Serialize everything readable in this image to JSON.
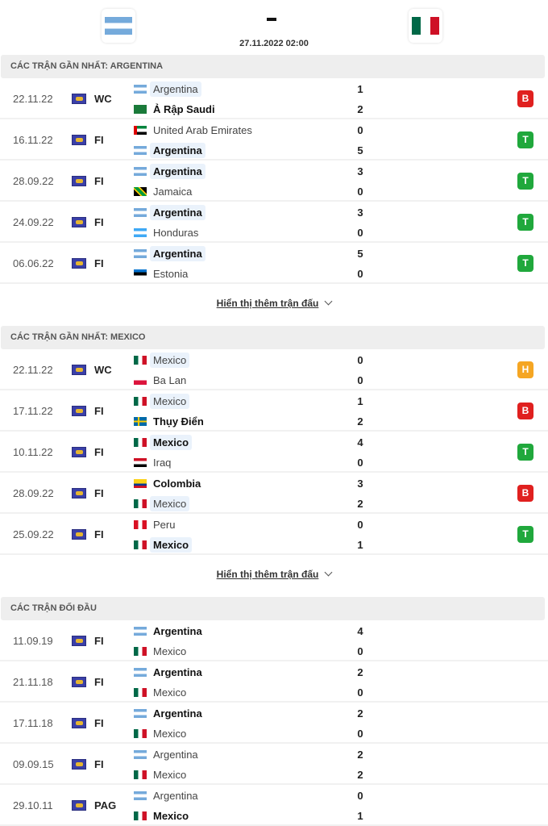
{
  "header": {
    "home_flag": "ARG",
    "away_flag": "MEX",
    "score": "-",
    "datetime": "27.11.2022 02:00"
  },
  "colors": {
    "B": "#e0201f",
    "T": "#20a83c",
    "H": "#f5a623",
    "highlight": "#eaf2fb"
  },
  "sections": [
    {
      "title": "CÁC TRẬN GẦN NHẤT: ARGENTINA",
      "more": "Hiển thị thêm trận đấu",
      "matches": [
        {
          "date": "22.11.22",
          "league": "WC",
          "home": {
            "flag": "ARG",
            "name": "Argentina",
            "bold": false,
            "hl": true
          },
          "away": {
            "flag": "KSA",
            "name": "Ả Rập Saudi",
            "bold": true,
            "hl": false
          },
          "hs": "1",
          "as": "2",
          "result": "B"
        },
        {
          "date": "16.11.22",
          "league": "FI",
          "home": {
            "flag": "UAE",
            "name": "United Arab Emirates",
            "bold": false,
            "hl": false
          },
          "away": {
            "flag": "ARG",
            "name": "Argentina",
            "bold": true,
            "hl": true
          },
          "hs": "0",
          "as": "5",
          "result": "T"
        },
        {
          "date": "28.09.22",
          "league": "FI",
          "home": {
            "flag": "ARG",
            "name": "Argentina",
            "bold": true,
            "hl": true
          },
          "away": {
            "flag": "JAM",
            "name": "Jamaica",
            "bold": false,
            "hl": false
          },
          "hs": "3",
          "as": "0",
          "result": "T"
        },
        {
          "date": "24.09.22",
          "league": "FI",
          "home": {
            "flag": "ARG",
            "name": "Argentina",
            "bold": true,
            "hl": true
          },
          "away": {
            "flag": "HON",
            "name": "Honduras",
            "bold": false,
            "hl": false
          },
          "hs": "3",
          "as": "0",
          "result": "T"
        },
        {
          "date": "06.06.22",
          "league": "FI",
          "home": {
            "flag": "ARG",
            "name": "Argentina",
            "bold": true,
            "hl": true
          },
          "away": {
            "flag": "EST",
            "name": "Estonia",
            "bold": false,
            "hl": false
          },
          "hs": "5",
          "as": "0",
          "result": "T"
        }
      ]
    },
    {
      "title": "CÁC TRẬN GẦN NHẤT: MEXICO",
      "more": "Hiển thị thêm trận đấu",
      "matches": [
        {
          "date": "22.11.22",
          "league": "WC",
          "home": {
            "flag": "MEX",
            "name": "Mexico",
            "bold": false,
            "hl": true
          },
          "away": {
            "flag": "POL",
            "name": "Ba Lan",
            "bold": false,
            "hl": false
          },
          "hs": "0",
          "as": "0",
          "result": "H"
        },
        {
          "date": "17.11.22",
          "league": "FI",
          "home": {
            "flag": "MEX",
            "name": "Mexico",
            "bold": false,
            "hl": true
          },
          "away": {
            "flag": "SWE",
            "name": "Thụy Điển",
            "bold": true,
            "hl": false
          },
          "hs": "1",
          "as": "2",
          "result": "B"
        },
        {
          "date": "10.11.22",
          "league": "FI",
          "home": {
            "flag": "MEX",
            "name": "Mexico",
            "bold": true,
            "hl": true
          },
          "away": {
            "flag": "IRQ",
            "name": "Iraq",
            "bold": false,
            "hl": false
          },
          "hs": "4",
          "as": "0",
          "result": "T"
        },
        {
          "date": "28.09.22",
          "league": "FI",
          "home": {
            "flag": "COL",
            "name": "Colombia",
            "bold": true,
            "hl": false
          },
          "away": {
            "flag": "MEX",
            "name": "Mexico",
            "bold": false,
            "hl": true
          },
          "hs": "3",
          "as": "2",
          "result": "B"
        },
        {
          "date": "25.09.22",
          "league": "FI",
          "home": {
            "flag": "PER",
            "name": "Peru",
            "bold": false,
            "hl": false
          },
          "away": {
            "flag": "MEX",
            "name": "Mexico",
            "bold": true,
            "hl": true
          },
          "hs": "0",
          "as": "1",
          "result": "T"
        }
      ]
    },
    {
      "title": "CÁC TRẬN ĐỐI ĐẦU",
      "more": "",
      "matches": [
        {
          "date": "11.09.19",
          "league": "FI",
          "home": {
            "flag": "ARG",
            "name": "Argentina",
            "bold": true,
            "hl": false
          },
          "away": {
            "flag": "MEX",
            "name": "Mexico",
            "bold": false,
            "hl": false
          },
          "hs": "4",
          "as": "0",
          "result": ""
        },
        {
          "date": "21.11.18",
          "league": "FI",
          "home": {
            "flag": "ARG",
            "name": "Argentina",
            "bold": true,
            "hl": false
          },
          "away": {
            "flag": "MEX",
            "name": "Mexico",
            "bold": false,
            "hl": false
          },
          "hs": "2",
          "as": "0",
          "result": ""
        },
        {
          "date": "17.11.18",
          "league": "FI",
          "home": {
            "flag": "ARG",
            "name": "Argentina",
            "bold": true,
            "hl": false
          },
          "away": {
            "flag": "MEX",
            "name": "Mexico",
            "bold": false,
            "hl": false
          },
          "hs": "2",
          "as": "0",
          "result": ""
        },
        {
          "date": "09.09.15",
          "league": "FI",
          "home": {
            "flag": "ARG",
            "name": "Argentina",
            "bold": false,
            "hl": false
          },
          "away": {
            "flag": "MEX",
            "name": "Mexico",
            "bold": false,
            "hl": false
          },
          "hs": "2",
          "as": "2",
          "result": ""
        },
        {
          "date": "29.10.11",
          "league": "PAG",
          "home": {
            "flag": "ARG",
            "name": "Argentina",
            "bold": false,
            "hl": false
          },
          "away": {
            "flag": "MEX",
            "name": "Mexico",
            "bold": true,
            "hl": false
          },
          "hs": "0",
          "as": "1",
          "result": ""
        }
      ]
    }
  ]
}
